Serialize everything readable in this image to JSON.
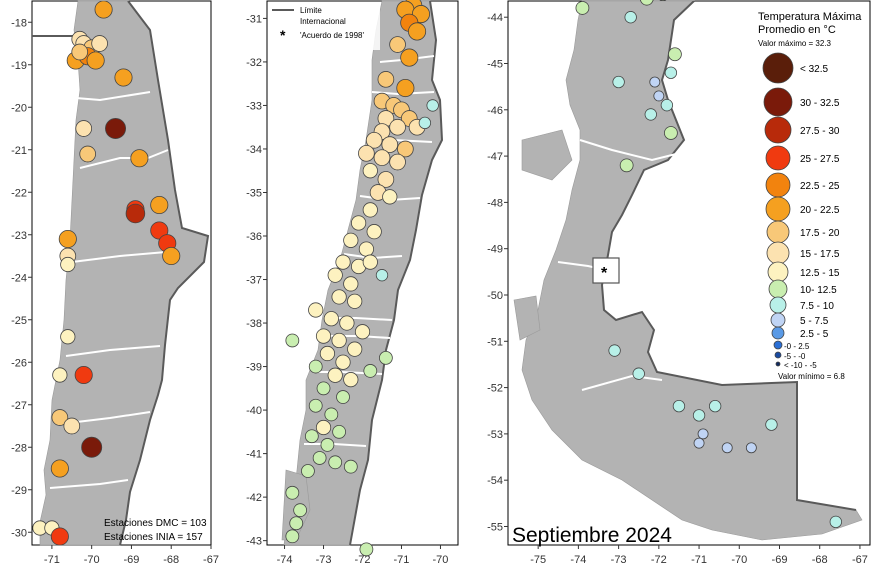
{
  "month_label": "Septiembre 2024",
  "legend": {
    "title_line1": "Temperatura Máxima",
    "title_line2": "Promedio en °C",
    "max_value": "Valor máximo = 32.3",
    "min_value": "Valor mínimo = 6.8",
    "classes": [
      {
        "label": "< 32.5",
        "color": "#5a1e0a"
      },
      {
        "label": "30 - 32.5",
        "color": "#7a1a0a"
      },
      {
        "label": "27.5 - 30",
        "color": "#b82a0a"
      },
      {
        "label": "25 - 27.5",
        "color": "#f03a10"
      },
      {
        "label": "22.5 - 25",
        "color": "#f2830e"
      },
      {
        "label": "20 - 22.5",
        "color": "#f5a020"
      },
      {
        "label": "17.5 - 20",
        "color": "#f8c878"
      },
      {
        "label": "15 - 17.5",
        "color": "#fce2b0"
      },
      {
        "label": "12.5 - 15",
        "color": "#fdf2c0"
      },
      {
        "label": "10- 12.5",
        "color": "#c9eeb0"
      },
      {
        "label": "7.5 - 10",
        "color": "#b8f0e8"
      },
      {
        "label": "5 - 7.5",
        "color": "#c0d4f4"
      },
      {
        "label": "2.5 - 5",
        "color": "#5a9ae6"
      },
      {
        "label": "-0 - 2.5",
        "color": "#2a6fd6"
      },
      {
        "label": "-5 - -0",
        "color": "#1a4aa0"
      },
      {
        "label": "< -10 - -5",
        "color": "#102a60"
      }
    ]
  },
  "border_legend": {
    "line_label_1": "Límite",
    "line_label_2": "Internacional",
    "star_symbol": "*",
    "star_label": "'Acuerdo de 1998'"
  },
  "stations_note": {
    "dmc": "Estaciones DMC = 103",
    "inia": "Estaciones INIA = 157"
  },
  "colors": {
    "land": "#b3b3b3",
    "admin_lines": "#ffffff",
    "border": "#5a5a5a"
  },
  "panels": {
    "north": {
      "y_ticks": [
        "-18",
        "-19",
        "-20",
        "-21",
        "-22",
        "-23",
        "-24",
        "-25",
        "-26",
        "-27",
        "-28",
        "-29",
        "-30"
      ],
      "x_ticks": [
        "-71",
        "-70",
        "-69",
        "-68",
        "-67"
      ]
    },
    "central": {
      "y_ticks": [
        "-31",
        "-32",
        "-33",
        "-34",
        "-35",
        "-36",
        "-37",
        "-38",
        "-39",
        "-40",
        "-41",
        "-42",
        "-43"
      ],
      "x_ticks": [
        "-74",
        "-73",
        "-72",
        "-71",
        "-70"
      ]
    },
    "south": {
      "y_ticks": [
        "-44",
        "-45",
        "-46",
        "-47",
        "-48",
        "-49",
        "-50",
        "-51",
        "-52",
        "-53",
        "-54",
        "-55"
      ],
      "x_ticks": [
        "-75",
        "-74",
        "-73",
        "-72",
        "-71",
        "-70",
        "-69",
        "-68",
        "-67"
      ]
    }
  },
  "stations": {
    "north": [
      {
        "lon": -69.7,
        "lat": -17.7,
        "cls": 5
      },
      {
        "lon": -70.3,
        "lat": -18.4,
        "cls": 7
      },
      {
        "lon": -70.2,
        "lat": -18.5,
        "cls": 7
      },
      {
        "lon": -70.0,
        "lat": -18.6,
        "cls": 6
      },
      {
        "lon": -70.4,
        "lat": -18.9,
        "cls": 5
      },
      {
        "lon": -70.1,
        "lat": -18.8,
        "cls": 4
      },
      {
        "lon": -69.8,
        "lat": -18.5,
        "cls": 7
      },
      {
        "lon": -70.3,
        "lat": -18.7,
        "cls": 6
      },
      {
        "lon": -69.9,
        "lat": -18.9,
        "cls": 5
      },
      {
        "lon": -69.2,
        "lat": -19.3,
        "cls": 5
      },
      {
        "lon": -69.4,
        "lat": -20.5,
        "cls": 1
      },
      {
        "lon": -70.2,
        "lat": -20.5,
        "cls": 7
      },
      {
        "lon": -68.8,
        "lat": -21.2,
        "cls": 5
      },
      {
        "lon": -70.1,
        "lat": -21.1,
        "cls": 6
      },
      {
        "lon": -68.9,
        "lat": -22.4,
        "cls": 3
      },
      {
        "lon": -68.9,
        "lat": -22.5,
        "cls": 2
      },
      {
        "lon": -68.3,
        "lat": -22.3,
        "cls": 5
      },
      {
        "lon": -68.3,
        "lat": -22.9,
        "cls": 3
      },
      {
        "lon": -68.1,
        "lat": -23.2,
        "cls": 3
      },
      {
        "lon": -68.0,
        "lat": -23.5,
        "cls": 5
      },
      {
        "lon": -70.6,
        "lat": -23.1,
        "cls": 5
      },
      {
        "lon": -70.6,
        "lat": -23.5,
        "cls": 7
      },
      {
        "lon": -70.6,
        "lat": -23.7,
        "cls": 8
      },
      {
        "lon": -70.6,
        "lat": -25.4,
        "cls": 8
      },
      {
        "lon": -70.8,
        "lat": -26.3,
        "cls": 8
      },
      {
        "lon": -70.2,
        "lat": -26.3,
        "cls": 3
      },
      {
        "lon": -70.8,
        "lat": -27.3,
        "cls": 6
      },
      {
        "lon": -70.5,
        "lat": -27.5,
        "cls": 7
      },
      {
        "lon": -70.0,
        "lat": -28.0,
        "cls": 1
      },
      {
        "lon": -70.8,
        "lat": -28.5,
        "cls": 5
      },
      {
        "lon": -71.3,
        "lat": -29.9,
        "cls": 8
      },
      {
        "lon": -71.0,
        "lat": -29.9,
        "cls": 8
      },
      {
        "lon": -70.8,
        "lat": -30.1,
        "cls": 3
      }
    ],
    "central": [
      {
        "lon": -70.7,
        "lat": -30.7,
        "cls": 5
      },
      {
        "lon": -70.9,
        "lat": -30.8,
        "cls": 5
      },
      {
        "lon": -70.5,
        "lat": -30.9,
        "cls": 5
      },
      {
        "lon": -70.8,
        "lat": -31.1,
        "cls": 4
      },
      {
        "lon": -70.6,
        "lat": -31.3,
        "cls": 5
      },
      {
        "lon": -71.1,
        "lat": -31.6,
        "cls": 6
      },
      {
        "lon": -70.8,
        "lat": -31.9,
        "cls": 5
      },
      {
        "lon": -71.4,
        "lat": -32.4,
        "cls": 6
      },
      {
        "lon": -70.9,
        "lat": -32.6,
        "cls": 5
      },
      {
        "lon": -71.5,
        "lat": -32.9,
        "cls": 6
      },
      {
        "lon": -71.2,
        "lat": -33.0,
        "cls": 6
      },
      {
        "lon": -71.0,
        "lat": -33.1,
        "cls": 6
      },
      {
        "lon": -71.4,
        "lat": -33.3,
        "cls": 7
      },
      {
        "lon": -70.8,
        "lat": -33.3,
        "cls": 6
      },
      {
        "lon": -71.1,
        "lat": -33.5,
        "cls": 7
      },
      {
        "lon": -70.6,
        "lat": -33.5,
        "cls": 7
      },
      {
        "lon": -71.5,
        "lat": -33.6,
        "cls": 7
      },
      {
        "lon": -70.4,
        "lat": -33.4,
        "cls": 10
      },
      {
        "lon": -70.2,
        "lat": -33.0,
        "cls": 10
      },
      {
        "lon": -71.7,
        "lat": -33.8,
        "cls": 7
      },
      {
        "lon": -71.3,
        "lat": -33.9,
        "cls": 7
      },
      {
        "lon": -70.9,
        "lat": -34.0,
        "cls": 6
      },
      {
        "lon": -71.9,
        "lat": -34.1,
        "cls": 7
      },
      {
        "lon": -71.5,
        "lat": -34.2,
        "cls": 7
      },
      {
        "lon": -71.1,
        "lat": -34.3,
        "cls": 7
      },
      {
        "lon": -71.8,
        "lat": -34.5,
        "cls": 8
      },
      {
        "lon": -71.4,
        "lat": -34.7,
        "cls": 7
      },
      {
        "lon": -71.6,
        "lat": -35.0,
        "cls": 7
      },
      {
        "lon": -71.3,
        "lat": -35.1,
        "cls": 8
      },
      {
        "lon": -71.8,
        "lat": -35.4,
        "cls": 8
      },
      {
        "lon": -72.1,
        "lat": -35.7,
        "cls": 8
      },
      {
        "lon": -71.7,
        "lat": -35.9,
        "cls": 8
      },
      {
        "lon": -72.3,
        "lat": -36.1,
        "cls": 8
      },
      {
        "lon": -71.9,
        "lat": -36.3,
        "cls": 8
      },
      {
        "lon": -72.5,
        "lat": -36.6,
        "cls": 8
      },
      {
        "lon": -72.1,
        "lat": -36.7,
        "cls": 8
      },
      {
        "lon": -71.8,
        "lat": -36.6,
        "cls": 8
      },
      {
        "lon": -72.7,
        "lat": -36.9,
        "cls": 8
      },
      {
        "lon": -72.3,
        "lat": -37.1,
        "cls": 8
      },
      {
        "lon": -71.5,
        "lat": -36.9,
        "cls": 10
      },
      {
        "lon": -72.6,
        "lat": -37.4,
        "cls": 8
      },
      {
        "lon": -72.2,
        "lat": -37.5,
        "cls": 8
      },
      {
        "lon": -73.2,
        "lat": -37.7,
        "cls": 8
      },
      {
        "lon": -72.8,
        "lat": -37.9,
        "cls": 8
      },
      {
        "lon": -72.4,
        "lat": -38.0,
        "cls": 8
      },
      {
        "lon": -72.0,
        "lat": -38.2,
        "cls": 8
      },
      {
        "lon": -73.0,
        "lat": -38.3,
        "cls": 8
      },
      {
        "lon": -72.6,
        "lat": -38.4,
        "cls": 8
      },
      {
        "lon": -73.8,
        "lat": -38.4,
        "cls": 9
      },
      {
        "lon": -72.2,
        "lat": -38.6,
        "cls": 8
      },
      {
        "lon": -72.9,
        "lat": -38.7,
        "cls": 8
      },
      {
        "lon": -72.5,
        "lat": -38.9,
        "cls": 8
      },
      {
        "lon": -73.2,
        "lat": -39.0,
        "cls": 9
      },
      {
        "lon": -71.8,
        "lat": -39.1,
        "cls": 9
      },
      {
        "lon": -72.7,
        "lat": -39.2,
        "cls": 8
      },
      {
        "lon": -72.3,
        "lat": -39.3,
        "cls": 8
      },
      {
        "lon": -73.0,
        "lat": -39.5,
        "cls": 9
      },
      {
        "lon": -71.4,
        "lat": -38.8,
        "cls": 9
      },
      {
        "lon": -72.5,
        "lat": -39.7,
        "cls": 9
      },
      {
        "lon": -73.2,
        "lat": -39.9,
        "cls": 9
      },
      {
        "lon": -72.8,
        "lat": -40.1,
        "cls": 9
      },
      {
        "lon": -73.0,
        "lat": -40.4,
        "cls": 8
      },
      {
        "lon": -72.6,
        "lat": -40.5,
        "cls": 9
      },
      {
        "lon": -73.3,
        "lat": -40.6,
        "cls": 9
      },
      {
        "lon": -72.9,
        "lat": -40.8,
        "cls": 9
      },
      {
        "lon": -73.1,
        "lat": -41.1,
        "cls": 9
      },
      {
        "lon": -72.7,
        "lat": -41.2,
        "cls": 9
      },
      {
        "lon": -73.4,
        "lat": -41.4,
        "cls": 9
      },
      {
        "lon": -72.3,
        "lat": -41.3,
        "cls": 9
      },
      {
        "lon": -73.8,
        "lat": -41.9,
        "cls": 9
      },
      {
        "lon": -73.6,
        "lat": -42.3,
        "cls": 9
      },
      {
        "lon": -73.7,
        "lat": -42.6,
        "cls": 9
      },
      {
        "lon": -73.8,
        "lat": -42.9,
        "cls": 9
      },
      {
        "lon": -71.9,
        "lat": -43.2,
        "cls": 9
      }
    ],
    "south": [
      {
        "lon": -73.9,
        "lat": -43.8,
        "cls": 9
      },
      {
        "lon": -72.3,
        "lat": -43.6,
        "cls": 9
      },
      {
        "lon": -71.9,
        "lat": -43.5,
        "cls": 9
      },
      {
        "lon": -72.7,
        "lat": -44.0,
        "cls": 10
      },
      {
        "lon": -71.6,
        "lat": -44.8,
        "cls": 9
      },
      {
        "lon": -71.7,
        "lat": -45.2,
        "cls": 10
      },
      {
        "lon": -72.1,
        "lat": -45.4,
        "cls": 11
      },
      {
        "lon": -73.0,
        "lat": -45.4,
        "cls": 10
      },
      {
        "lon": -72.0,
        "lat": -45.7,
        "cls": 11
      },
      {
        "lon": -71.8,
        "lat": -45.9,
        "cls": 10
      },
      {
        "lon": -72.2,
        "lat": -46.1,
        "cls": 10
      },
      {
        "lon": -71.7,
        "lat": -46.5,
        "cls": 9
      },
      {
        "lon": -72.8,
        "lat": -47.2,
        "cls": 9
      },
      {
        "lon": -73.1,
        "lat": -51.2,
        "cls": 10
      },
      {
        "lon": -72.5,
        "lat": -51.7,
        "cls": 10
      },
      {
        "lon": -71.5,
        "lat": -52.4,
        "cls": 10
      },
      {
        "lon": -70.6,
        "lat": -52.4,
        "cls": 10
      },
      {
        "lon": -71.0,
        "lat": -52.6,
        "cls": 10
      },
      {
        "lon": -69.2,
        "lat": -52.8,
        "cls": 10
      },
      {
        "lon": -70.9,
        "lat": -53.0,
        "cls": 11
      },
      {
        "lon": -71.0,
        "lat": -53.2,
        "cls": 11
      },
      {
        "lon": -70.3,
        "lat": -53.3,
        "cls": 11
      },
      {
        "lon": -69.7,
        "lat": -53.3,
        "cls": 11
      },
      {
        "lon": -67.6,
        "lat": -54.9,
        "cls": 10
      }
    ]
  }
}
